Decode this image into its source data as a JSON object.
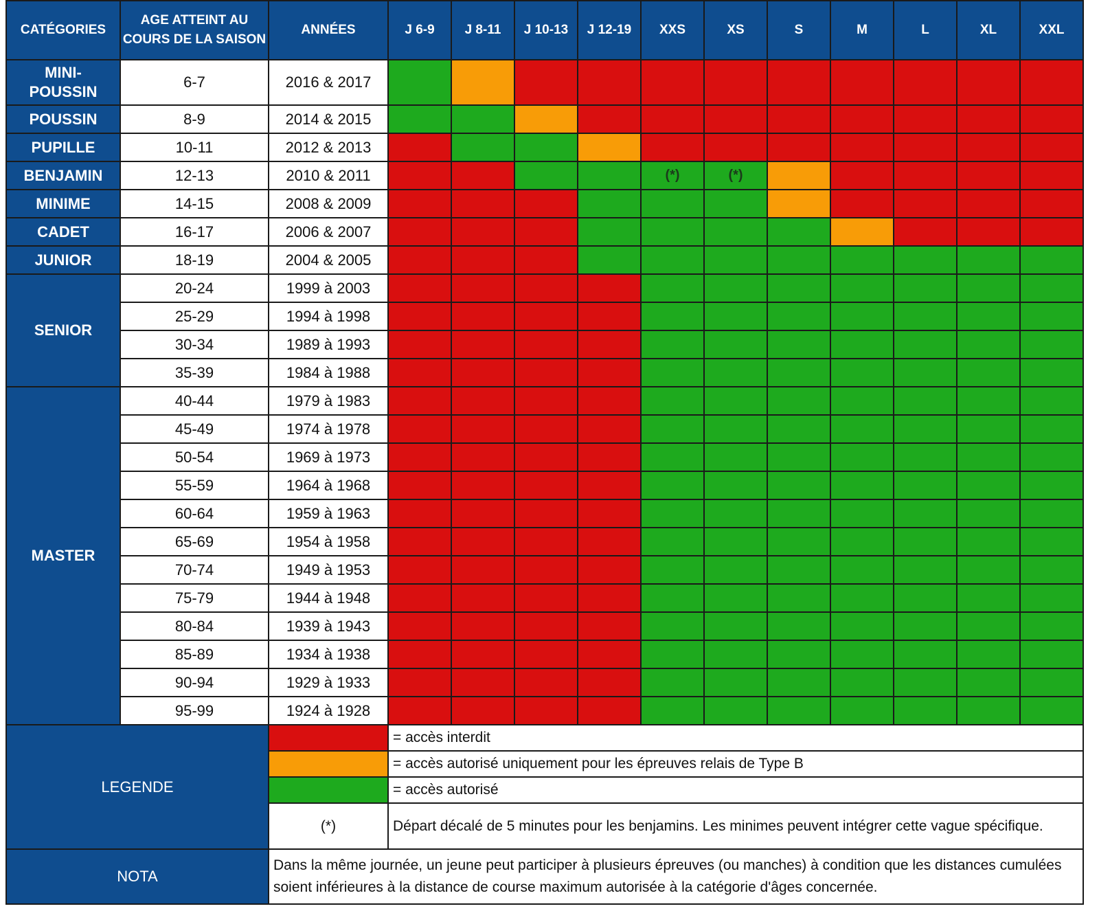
{
  "colors": {
    "header_bg": "#0f4d8f",
    "red": "#d90f0f",
    "orange": "#f89c07",
    "green": "#1eaa1e"
  },
  "headers": {
    "categories": "CATÉGORIES",
    "age": "AGE ATTEINT AU COURS DE LA SAISON",
    "years": "ANNÉES",
    "distances": [
      "J 6-9",
      "J 8-11",
      "J 10-13",
      "J 12-19",
      "XXS",
      "XS",
      "S",
      "M",
      "L",
      "XL",
      "XXL"
    ]
  },
  "rows": [
    {
      "category": "MINI-\nPOUSSIN",
      "age": "6-7",
      "years": "2016 & 2017",
      "cells": [
        "g",
        "o",
        "r",
        "r",
        "r",
        "r",
        "r",
        "r",
        "r",
        "r",
        "r"
      ],
      "tall": true
    },
    {
      "category": "POUSSIN",
      "age": "8-9",
      "years": "2014 & 2015",
      "cells": [
        "g",
        "g",
        "o",
        "r",
        "r",
        "r",
        "r",
        "r",
        "r",
        "r",
        "r"
      ]
    },
    {
      "category": "PUPILLE",
      "age": "10-11",
      "years": "2012 & 2013",
      "cells": [
        "r",
        "g",
        "g",
        "o",
        "r",
        "r",
        "r",
        "r",
        "r",
        "r",
        "r"
      ]
    },
    {
      "category": "BENJAMIN",
      "age": "12-13",
      "years": "2010 & 2011",
      "cells": [
        "r",
        "r",
        "g",
        "g",
        "g",
        "g",
        "o",
        "r",
        "r",
        "r",
        "r"
      ],
      "marks": {
        "4": "(*)",
        "5": "(*)"
      }
    },
    {
      "category": "MINIME",
      "age": "14-15",
      "years": "2008 & 2009",
      "cells": [
        "r",
        "r",
        "r",
        "g",
        "g",
        "g",
        "o",
        "r",
        "r",
        "r",
        "r"
      ]
    },
    {
      "category": "CADET",
      "age": "16-17",
      "years": "2006 & 2007",
      "cells": [
        "r",
        "r",
        "r",
        "g",
        "g",
        "g",
        "g",
        "o",
        "r",
        "r",
        "r"
      ]
    },
    {
      "category": "JUNIOR",
      "age": "18-19",
      "years": "2004 & 2005",
      "cells": [
        "r",
        "r",
        "r",
        "g",
        "g",
        "g",
        "g",
        "g",
        "g",
        "g",
        "g"
      ]
    },
    {
      "category": "SENIOR",
      "span": 4,
      "age": "20-24",
      "years": "1999 à 2003",
      "cells": [
        "r",
        "r",
        "r",
        "r",
        "g",
        "g",
        "g",
        "g",
        "g",
        "g",
        "g"
      ]
    },
    {
      "age": "25-29",
      "years": "1994 à 1998",
      "cells": [
        "r",
        "r",
        "r",
        "r",
        "g",
        "g",
        "g",
        "g",
        "g",
        "g",
        "g"
      ]
    },
    {
      "age": "30-34",
      "years": "1989 à 1993",
      "cells": [
        "r",
        "r",
        "r",
        "r",
        "g",
        "g",
        "g",
        "g",
        "g",
        "g",
        "g"
      ]
    },
    {
      "age": "35-39",
      "years": "1984 à 1988",
      "cells": [
        "r",
        "r",
        "r",
        "r",
        "g",
        "g",
        "g",
        "g",
        "g",
        "g",
        "g"
      ]
    },
    {
      "category": "MASTER",
      "span": 12,
      "age": "40-44",
      "years": "1979 à 1983",
      "cells": [
        "r",
        "r",
        "r",
        "r",
        "g",
        "g",
        "g",
        "g",
        "g",
        "g",
        "g"
      ]
    },
    {
      "age": "45-49",
      "years": "1974 à 1978",
      "cells": [
        "r",
        "r",
        "r",
        "r",
        "g",
        "g",
        "g",
        "g",
        "g",
        "g",
        "g"
      ]
    },
    {
      "age": "50-54",
      "years": "1969 à 1973",
      "cells": [
        "r",
        "r",
        "r",
        "r",
        "g",
        "g",
        "g",
        "g",
        "g",
        "g",
        "g"
      ]
    },
    {
      "age": "55-59",
      "years": "1964 à 1968",
      "cells": [
        "r",
        "r",
        "r",
        "r",
        "g",
        "g",
        "g",
        "g",
        "g",
        "g",
        "g"
      ]
    },
    {
      "age": "60-64",
      "years": "1959 à 1963",
      "cells": [
        "r",
        "r",
        "r",
        "r",
        "g",
        "g",
        "g",
        "g",
        "g",
        "g",
        "g"
      ]
    },
    {
      "age": "65-69",
      "years": "1954 à 1958",
      "cells": [
        "r",
        "r",
        "r",
        "r",
        "g",
        "g",
        "g",
        "g",
        "g",
        "g",
        "g"
      ]
    },
    {
      "age": "70-74",
      "years": "1949 à 1953",
      "cells": [
        "r",
        "r",
        "r",
        "r",
        "g",
        "g",
        "g",
        "g",
        "g",
        "g",
        "g"
      ]
    },
    {
      "age": "75-79",
      "years": "1944 à 1948",
      "cells": [
        "r",
        "r",
        "r",
        "r",
        "g",
        "g",
        "g",
        "g",
        "g",
        "g",
        "g"
      ]
    },
    {
      "age": "80-84",
      "years": "1939 à 1943",
      "cells": [
        "r",
        "r",
        "r",
        "r",
        "g",
        "g",
        "g",
        "g",
        "g",
        "g",
        "g"
      ]
    },
    {
      "age": "85-89",
      "years": "1934 à 1938",
      "cells": [
        "r",
        "r",
        "r",
        "r",
        "g",
        "g",
        "g",
        "g",
        "g",
        "g",
        "g"
      ]
    },
    {
      "age": "90-94",
      "years": "1929 à 1933",
      "cells": [
        "r",
        "r",
        "r",
        "r",
        "g",
        "g",
        "g",
        "g",
        "g",
        "g",
        "g"
      ]
    },
    {
      "age": "95-99",
      "years": "1924 à 1928",
      "cells": [
        "r",
        "r",
        "r",
        "r",
        "g",
        "g",
        "g",
        "g",
        "g",
        "g",
        "g"
      ]
    }
  ],
  "legend": {
    "title": "LEGENDE",
    "red_text": "= accès interdit",
    "orange_text": "= accès autorisé uniquement pour les  épreuves relais de Type B",
    "green_text": "= accès autorisé",
    "star_symbol": "(*)",
    "star_text": "Départ décalé de 5 minutes pour les benjamins. Les minimes peuvent intégrer cette vague spécifique."
  },
  "nota": {
    "title": "NOTA",
    "text": "Dans la même journée, un jeune peut participer à plusieurs épreuves (ou manches) à condition que les distances cumulées soient inférieures à la distance de course maximum autorisée à la catégorie d'âges concernée."
  }
}
